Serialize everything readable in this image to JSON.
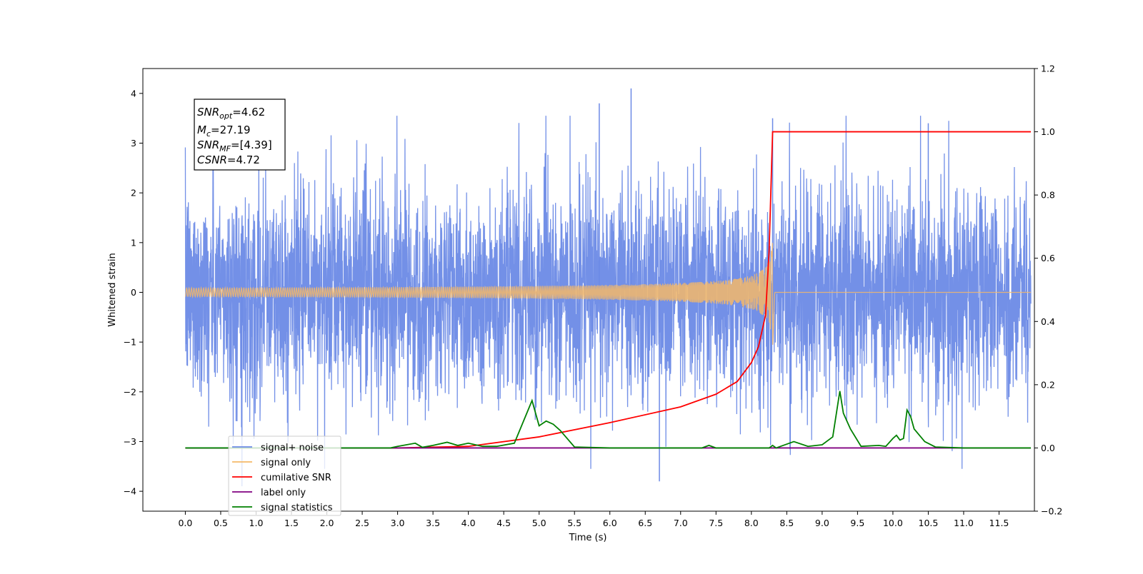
{
  "chart_data": {
    "type": "line",
    "xlabel": "Time (s)",
    "ylabel": "Whitened strain",
    "xlim": [
      -0.6,
      12.0
    ],
    "ylim": [
      -4.4,
      4.5
    ],
    "y2lim": [
      -0.2,
      1.2
    ],
    "xticks": [
      "0.0",
      "0.5",
      "1.0",
      "1.5",
      "2.0",
      "2.5",
      "3.0",
      "3.5",
      "4.0",
      "4.5",
      "5.0",
      "5.5",
      "6.0",
      "6.5",
      "7.0",
      "7.5",
      "8.0",
      "8.5",
      "9.0",
      "9.5",
      "10.0",
      "10.5",
      "11.0",
      "11.5"
    ],
    "yticks": [
      "4",
      "3",
      "2",
      "1",
      "0",
      "−1",
      "−2",
      "−3",
      "−4"
    ],
    "y2ticks": [
      "1.2",
      "1.0",
      "0.8",
      "0.6",
      "0.4",
      "0.2",
      "0.0",
      "−0.2"
    ],
    "annotation": {
      "snr_opt": "4.62",
      "mc": "27.19",
      "snr_mf": "[4.39]",
      "csnr": "4.72"
    },
    "legend_position": "lower-left",
    "series": [
      {
        "name": "signal+ noise",
        "axis": "left",
        "color": "#6c8ae6",
        "description": "whitened noise, approx. amplitude ±3.5 over 0–12 s",
        "peaks": [
          [
            6.3,
            4.1
          ],
          [
            6.7,
            -3.8
          ],
          [
            5.85,
            3.8
          ],
          [
            0.8,
            -3.9
          ],
          [
            8.3,
            3.5
          ],
          [
            10.5,
            3.4
          ]
        ]
      },
      {
        "name": "signal only",
        "axis": "left",
        "color": "#f5b969",
        "chirp_end": 8.3,
        "peak_amplitude": 1.0
      },
      {
        "name": "cumilative SNR",
        "axis": "right",
        "color": "#ff0000",
        "x": [
          0.0,
          3.0,
          4.0,
          5.0,
          6.0,
          7.0,
          7.5,
          7.8,
          8.0,
          8.1,
          8.2,
          8.25,
          8.3,
          11.95
        ],
        "values": [
          0.0,
          0.0,
          0.005,
          0.035,
          0.08,
          0.13,
          0.17,
          0.21,
          0.27,
          0.32,
          0.42,
          0.62,
          1.0,
          1.0
        ]
      },
      {
        "name": "label only",
        "axis": "right",
        "color": "#800080",
        "x": [
          0.0,
          11.95
        ],
        "values": [
          0.0,
          0.0
        ]
      },
      {
        "name": "signal statistics",
        "axis": "right",
        "color": "#008000",
        "x": [
          0.0,
          2.9,
          3.0,
          3.25,
          3.35,
          3.5,
          3.7,
          3.85,
          4.0,
          4.2,
          4.4,
          4.65,
          4.9,
          4.95,
          5.0,
          5.1,
          5.2,
          5.3,
          5.5,
          6.0,
          7.3,
          7.4,
          7.5,
          8.25,
          8.3,
          8.35,
          8.6,
          8.8,
          9.0,
          9.15,
          9.25,
          9.3,
          9.4,
          9.55,
          9.8,
          9.9,
          10.0,
          10.05,
          10.1,
          10.15,
          10.2,
          10.25,
          10.3,
          10.45,
          10.6,
          11.0,
          11.95
        ],
        "values": [
          0.0,
          0.0,
          0.005,
          0.015,
          0.002,
          0.008,
          0.018,
          0.008,
          0.015,
          0.005,
          0.005,
          0.015,
          0.15,
          0.11,
          0.07,
          0.085,
          0.075,
          0.055,
          0.003,
          0.0,
          0.0,
          0.008,
          0.0,
          0.0,
          0.008,
          0.0,
          0.02,
          0.005,
          0.01,
          0.035,
          0.18,
          0.11,
          0.06,
          0.005,
          0.008,
          0.005,
          0.03,
          0.04,
          0.025,
          0.03,
          0.12,
          0.1,
          0.06,
          0.02,
          0.003,
          0.0,
          0.0
        ]
      }
    ]
  }
}
